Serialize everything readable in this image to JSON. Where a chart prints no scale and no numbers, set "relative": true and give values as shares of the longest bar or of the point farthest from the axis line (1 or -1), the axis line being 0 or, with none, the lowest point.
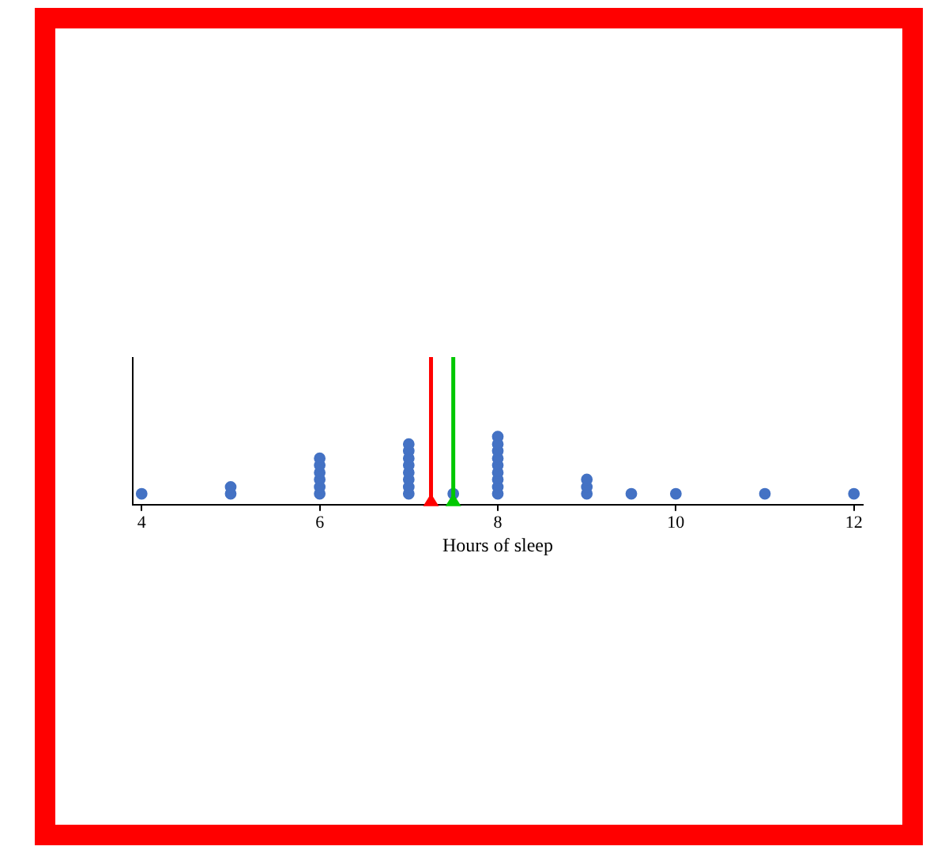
{
  "chart_data": {
    "type": "scatter",
    "xlabel": "Hours of sleep",
    "relative": true,
    "x": [
      4,
      5,
      5,
      6,
      6,
      6,
      6,
      6,
      6,
      7,
      7,
      7,
      7,
      7,
      7,
      7,
      7,
      7.5,
      8,
      8,
      8,
      8,
      8,
      8,
      8,
      8,
      8,
      9,
      9,
      9,
      9.5,
      10,
      11,
      12
    ],
    "series": [
      {
        "color": "#4472c4",
        "values": [
          0.16,
          0.16,
          0.26,
          0.16,
          0.26,
          0.37,
          0.47,
          0.58,
          0.68,
          0.16,
          0.26,
          0.37,
          0.47,
          0.58,
          0.68,
          0.79,
          0.89,
          0.16,
          0.16,
          0.26,
          0.37,
          0.47,
          0.58,
          0.68,
          0.79,
          0.89,
          1,
          0.16,
          0.26,
          0.37,
          0.16,
          0.16,
          0.16,
          0.16
        ]
      }
    ],
    "xlim": [
      3.9,
      12.1
    ],
    "xticks": [
      4,
      6,
      8,
      10,
      12
    ],
    "ref_lines": [
      {
        "axis": "x",
        "value": 7.25,
        "color": "#ff0000"
      },
      {
        "axis": "x",
        "value": 7.5,
        "color": "#00c800"
      }
    ],
    "marker": "circle",
    "grid": false,
    "legend": false
  }
}
